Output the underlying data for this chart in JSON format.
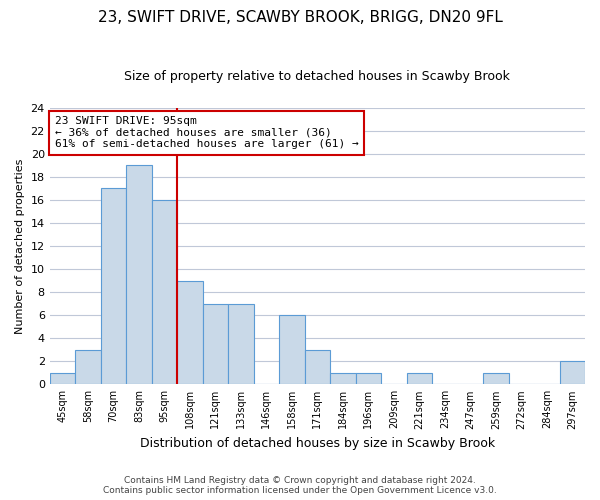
{
  "title": "23, SWIFT DRIVE, SCAWBY BROOK, BRIGG, DN20 9FL",
  "subtitle": "Size of property relative to detached houses in Scawby Brook",
  "xlabel": "Distribution of detached houses by size in Scawby Brook",
  "ylabel": "Number of detached properties",
  "bar_labels": [
    "45sqm",
    "58sqm",
    "70sqm",
    "83sqm",
    "95sqm",
    "108sqm",
    "121sqm",
    "133sqm",
    "146sqm",
    "158sqm",
    "171sqm",
    "184sqm",
    "196sqm",
    "209sqm",
    "221sqm",
    "234sqm",
    "247sqm",
    "259sqm",
    "272sqm",
    "284sqm",
    "297sqm"
  ],
  "bar_values": [
    1,
    3,
    17,
    19,
    16,
    9,
    7,
    7,
    0,
    6,
    3,
    1,
    1,
    0,
    1,
    0,
    0,
    1,
    0,
    0,
    2
  ],
  "bar_color": "#c9d9e8",
  "bar_edge_color": "#5b9bd5",
  "background_color": "#ffffff",
  "grid_color": "#c0c8d8",
  "property_line_idx": 4,
  "property_line_color": "#cc0000",
  "annotation_title": "23 SWIFT DRIVE: 95sqm",
  "annotation_line1": "← 36% of detached houses are smaller (36)",
  "annotation_line2": "61% of semi-detached houses are larger (61) →",
  "annotation_box_color": "#ffffff",
  "annotation_box_edge": "#cc0000",
  "ylim": [
    0,
    24
  ],
  "yticks": [
    0,
    2,
    4,
    6,
    8,
    10,
    12,
    14,
    16,
    18,
    20,
    22,
    24
  ],
  "footnote1": "Contains HM Land Registry data © Crown copyright and database right 2024.",
  "footnote2": "Contains public sector information licensed under the Open Government Licence v3.0."
}
